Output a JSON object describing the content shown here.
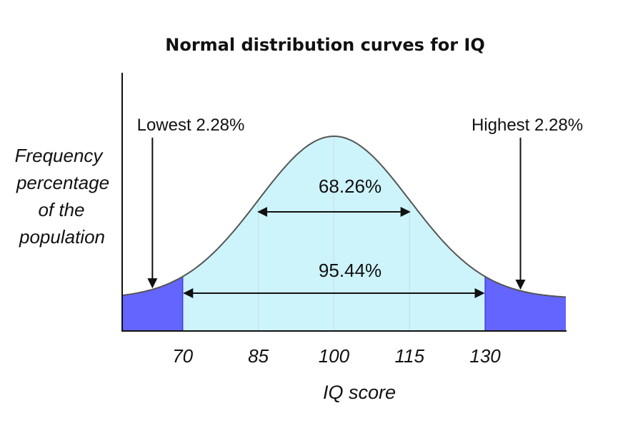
{
  "chart_data": {
    "type": "area",
    "title": "Normal distribution curves for IQ",
    "xlabel": "IQ score",
    "ylabel_lines": [
      "Frequency",
      "percentage",
      "of the",
      "population"
    ],
    "distribution": {
      "mean": 100,
      "sd": 15
    },
    "xlim": [
      58,
      146
    ],
    "xticks": [
      70,
      85,
      100,
      115,
      130
    ],
    "tick_labels": [
      "70",
      "85",
      "100",
      "115",
      "130"
    ],
    "gridlines_x": [
      85,
      100,
      115
    ],
    "regions": [
      {
        "name": "lower-tail",
        "from": 58,
        "to": 70,
        "color": "#6464ff"
      },
      {
        "name": "middle",
        "from": 70,
        "to": 130,
        "color": "#cdf4fb"
      },
      {
        "name": "upper-tail",
        "from": 130,
        "to": 146,
        "color": "#6464ff"
      }
    ],
    "annotations": {
      "lowest": {
        "text": "Lowest 2.28%",
        "target_x": 64
      },
      "highest": {
        "text": "Highest 2.28%",
        "target_x": 137
      },
      "one_sd": {
        "text": "68.26%",
        "from": 85,
        "to": 115
      },
      "two_sd": {
        "text": "95.44%",
        "from": 70,
        "to": 130
      }
    },
    "colors": {
      "curve": "#555555",
      "tail": "#6464ff",
      "middle": "#cdf4fb",
      "axis": "#111111",
      "grid": "#c4dde2"
    }
  }
}
